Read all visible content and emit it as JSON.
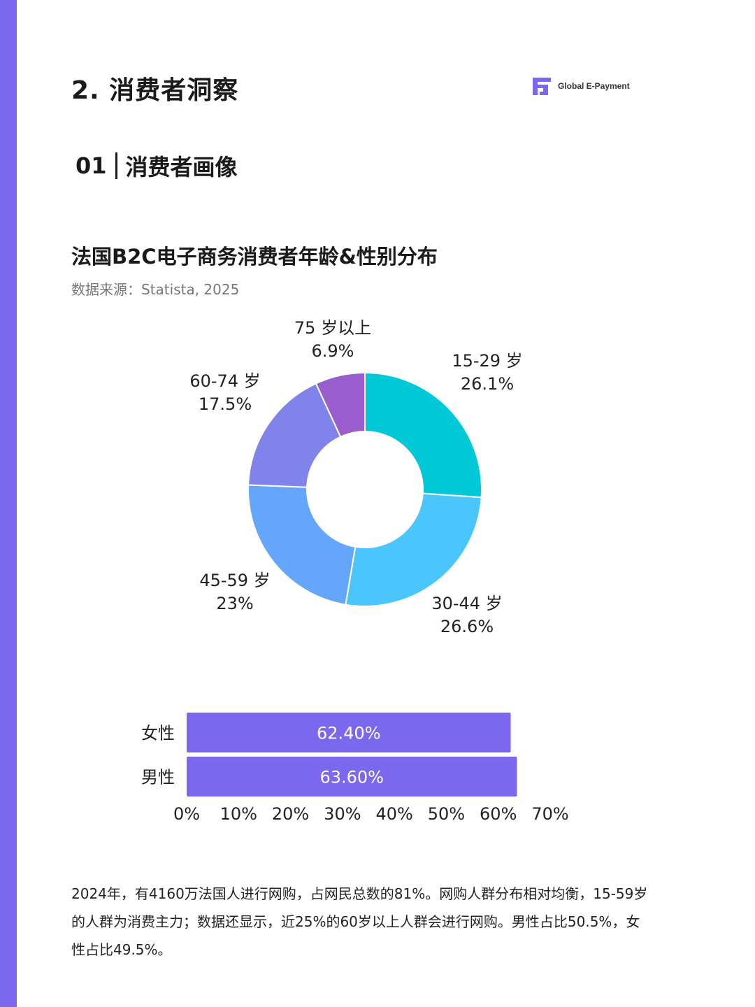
{
  "header": {
    "section_title": "2. 消费者洞察",
    "brand_name": "Global E-Payment",
    "brand_icon": "gep-logo-icon",
    "accent_color": "#7b68ee"
  },
  "subsection": {
    "number": "01",
    "title": "消费者画像"
  },
  "chart_data": [
    {
      "type": "pie",
      "title": "法国B2C电子商务消费者年龄&性别分布",
      "source": "数据来源：Statista, 2025",
      "categories": [
        "15-29 岁",
        "30-44 岁",
        "45-59 岁",
        "60-74 岁",
        "75 岁以上"
      ],
      "values": [
        26.1,
        26.6,
        23,
        17.5,
        6.9
      ],
      "value_labels": [
        "26.1%",
        "26.6%",
        "23%",
        "17.5%",
        "6.9%"
      ],
      "colors": [
        "#00c8d7",
        "#4bc6fc",
        "#64a6fb",
        "#8083e9",
        "#9a5dce"
      ],
      "donut": true
    },
    {
      "type": "bar",
      "orientation": "horizontal",
      "categories": [
        "女性",
        "男性"
      ],
      "values": [
        62.4,
        63.6
      ],
      "value_labels": [
        "62.40%",
        "63.60%"
      ],
      "xlim": [
        0,
        70
      ],
      "x_ticks": [
        "0%",
        "10%",
        "20%",
        "30%",
        "40%",
        "50%",
        "60%",
        "70%"
      ],
      "bar_color": "#7b68ee"
    }
  ],
  "body_text": "2024年，有4160万法国人进行网购，占网民总数的81%。网购人群分布相对均衡，15-59岁的人群为消费主力；数据还显示，近25%的60岁以上人群会进行网购。男性占比50.5%，女性占比49.5%。"
}
